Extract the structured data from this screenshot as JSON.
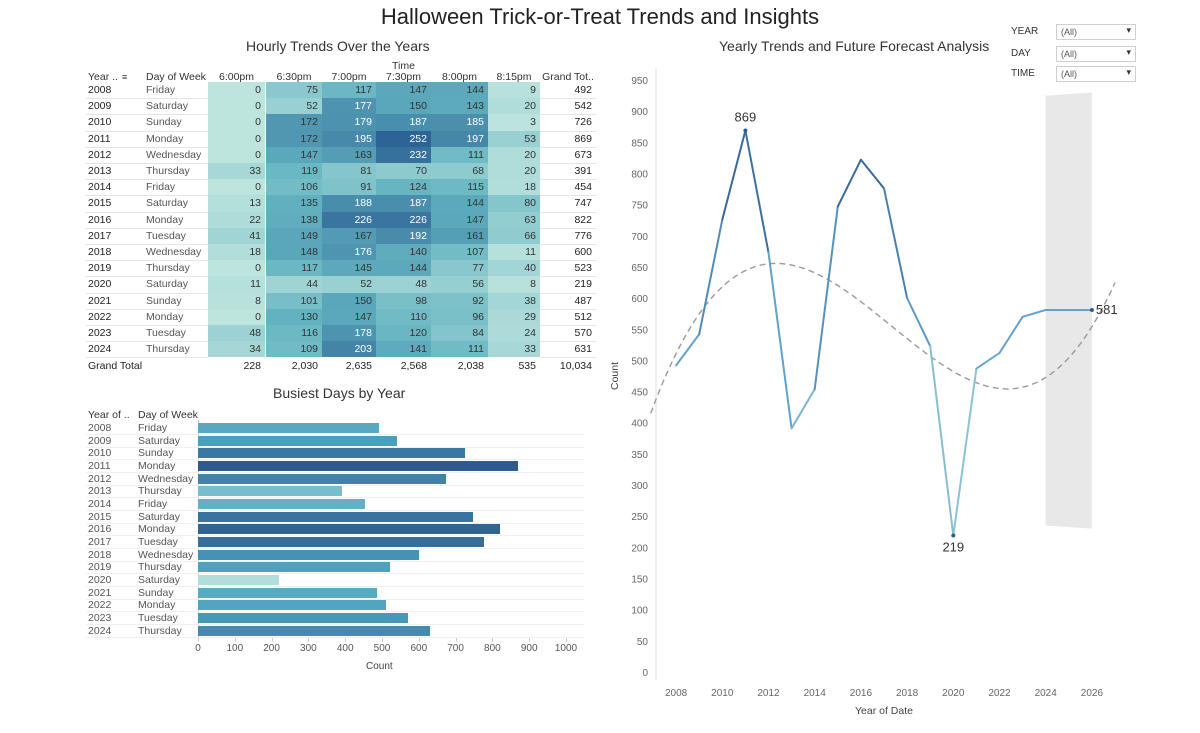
{
  "dashboard": {
    "title": "Halloween Trick-or-Treat Trends and Insights"
  },
  "filters": [
    {
      "label": "YEAR",
      "value": "(All)"
    },
    {
      "label": "DAY",
      "value": "(All)"
    },
    {
      "label": "TIME",
      "value": "(All)"
    }
  ],
  "colors": {
    "dark": "#2e5e8c",
    "mid": "#3a8fb7",
    "light": "#b9e2dc",
    "forecast_band": "#e8e8e8",
    "trend": "#9a9a9a"
  },
  "chart_data": [
    {
      "type": "heatmap",
      "title": "Hourly Trends Over the Years",
      "column_group_label": "Time",
      "row_headers": [
        "Year ..",
        "Day of Week"
      ],
      "columns": [
        "6:00pm",
        "6:30pm",
        "7:00pm",
        "7:30pm",
        "8:00pm",
        "8:15pm",
        "Grand Tot.."
      ],
      "rows": [
        {
          "year": "2008",
          "day": "Friday",
          "values": [
            0,
            75,
            117,
            147,
            144,
            9
          ],
          "total": "492"
        },
        {
          "year": "2009",
          "day": "Saturday",
          "values": [
            0,
            52,
            177,
            150,
            143,
            20
          ],
          "total": "542"
        },
        {
          "year": "2010",
          "day": "Sunday",
          "values": [
            0,
            172,
            179,
            187,
            185,
            3
          ],
          "total": "726"
        },
        {
          "year": "2011",
          "day": "Monday",
          "values": [
            0,
            172,
            195,
            252,
            197,
            53
          ],
          "total": "869"
        },
        {
          "year": "2012",
          "day": "Wednesday",
          "values": [
            0,
            147,
            163,
            232,
            111,
            20
          ],
          "total": "673"
        },
        {
          "year": "2013",
          "day": "Thursday",
          "values": [
            33,
            119,
            81,
            70,
            68,
            20
          ],
          "total": "391"
        },
        {
          "year": "2014",
          "day": "Friday",
          "values": [
            0,
            106,
            91,
            124,
            115,
            18
          ],
          "total": "454"
        },
        {
          "year": "2015",
          "day": "Saturday",
          "values": [
            13,
            135,
            188,
            187,
            144,
            80
          ],
          "total": "747"
        },
        {
          "year": "2016",
          "day": "Monday",
          "values": [
            22,
            138,
            226,
            226,
            147,
            63
          ],
          "total": "822"
        },
        {
          "year": "2017",
          "day": "Tuesday",
          "values": [
            41,
            149,
            167,
            192,
            161,
            66
          ],
          "total": "776"
        },
        {
          "year": "2018",
          "day": "Wednesday",
          "values": [
            18,
            148,
            176,
            140,
            107,
            11
          ],
          "total": "600"
        },
        {
          "year": "2019",
          "day": "Thursday",
          "values": [
            0,
            117,
            145,
            144,
            77,
            40
          ],
          "total": "523"
        },
        {
          "year": "2020",
          "day": "Saturday",
          "values": [
            11,
            44,
            52,
            48,
            56,
            8
          ],
          "total": "219"
        },
        {
          "year": "2021",
          "day": "Sunday",
          "values": [
            8,
            101,
            150,
            98,
            92,
            38
          ],
          "total": "487"
        },
        {
          "year": "2022",
          "day": "Monday",
          "values": [
            0,
            130,
            147,
            110,
            96,
            29
          ],
          "total": "512"
        },
        {
          "year": "2023",
          "day": "Tuesday",
          "values": [
            48,
            116,
            178,
            120,
            84,
            24
          ],
          "total": "570"
        },
        {
          "year": "2024",
          "day": "Thursday",
          "values": [
            34,
            109,
            203,
            141,
            111,
            33
          ],
          "total": "631"
        }
      ],
      "grand_total_label": "Grand Total",
      "grand_totals": [
        "228",
        "2,030",
        "2,635",
        "2,568",
        "2,038",
        "535",
        "10,034"
      ]
    },
    {
      "type": "bar",
      "title": "Busiest Days by Year",
      "row_headers": [
        "Year of ..",
        "Day of Week"
      ],
      "categories": [
        "2008",
        "2009",
        "2010",
        "2011",
        "2012",
        "2013",
        "2014",
        "2015",
        "2016",
        "2017",
        "2018",
        "2019",
        "2020",
        "2021",
        "2022",
        "2023",
        "2024"
      ],
      "days": [
        "Friday",
        "Saturday",
        "Sunday",
        "Monday",
        "Wednesday",
        "Thursday",
        "Friday",
        "Saturday",
        "Monday",
        "Tuesday",
        "Wednesday",
        "Thursday",
        "Saturday",
        "Sunday",
        "Monday",
        "Tuesday",
        "Thursday"
      ],
      "values": [
        492,
        542,
        726,
        869,
        673,
        391,
        454,
        747,
        822,
        776,
        600,
        523,
        219,
        487,
        512,
        570,
        631
      ],
      "xlabel": "Count",
      "xlim": [
        0,
        1000
      ],
      "xticks": [
        "0",
        "100",
        "200",
        "300",
        "400",
        "500",
        "600",
        "700",
        "800",
        "900",
        "1000"
      ]
    },
    {
      "type": "line",
      "title": "Yearly Trends and Future Forecast Analysis",
      "xlabel": "Year of Date",
      "ylabel": "Count",
      "xlim": [
        2007,
        2027
      ],
      "ylim": [
        0,
        950
      ],
      "xticks": [
        "2008",
        "2010",
        "2012",
        "2014",
        "2016",
        "2018",
        "2020",
        "2022",
        "2024",
        "2026"
      ],
      "yticks": [
        "0",
        "50",
        "100",
        "150",
        "200",
        "250",
        "300",
        "350",
        "400",
        "450",
        "500",
        "550",
        "600",
        "650",
        "700",
        "750",
        "800",
        "850",
        "900",
        "950"
      ],
      "series": [
        {
          "x": [
            2008,
            2009,
            2010,
            2011,
            2012,
            2013,
            2014,
            2015,
            2016,
            2017,
            2018,
            2019,
            2020,
            2021,
            2022
          ],
          "y": [
            492,
            542,
            726,
            869,
            673,
            391,
            454,
            747,
            822,
            776,
            600,
            523,
            219,
            487,
            512
          ]
        },
        {
          "x": [
            2022,
            2023,
            2024,
            2025,
            2026
          ],
          "y": [
            512,
            570,
            581,
            581,
            581
          ]
        }
      ],
      "forecast_band": {
        "x": [
          2024,
          2026
        ],
        "upper": [
          925,
          930
        ],
        "lower": [
          235,
          230
        ]
      },
      "annotations": [
        {
          "x": 2011,
          "y": 869,
          "label": "869"
        },
        {
          "x": 2020,
          "y": 219,
          "label": "219"
        },
        {
          "x": 2026,
          "y": 581,
          "label": "581"
        }
      ]
    }
  ]
}
